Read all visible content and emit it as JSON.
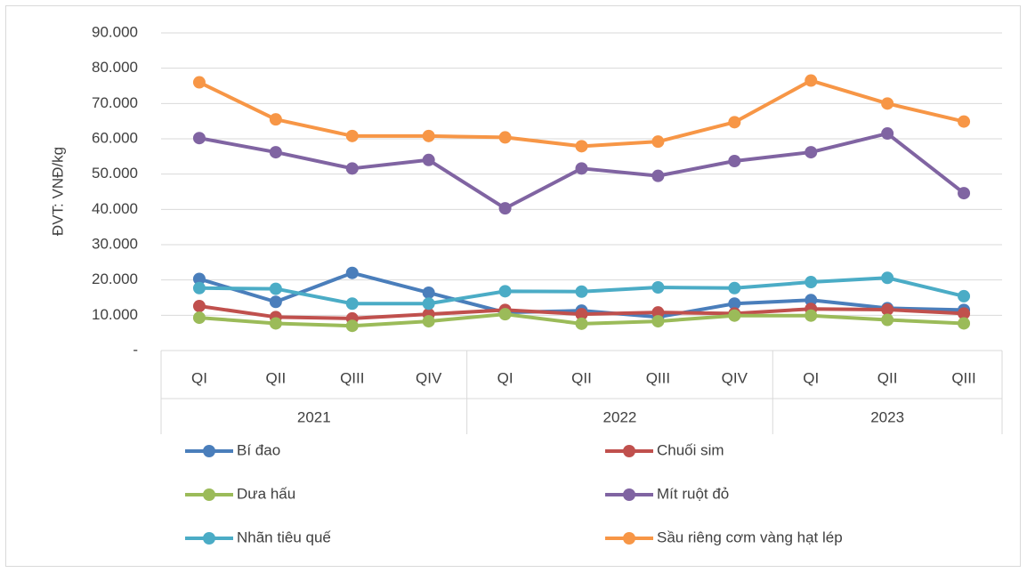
{
  "chart_data": {
    "type": "line",
    "y_label": "ĐVT: VNĐ/kg",
    "groups": [
      {
        "name": "2021",
        "categories": [
          "QI",
          "QII",
          "QIII",
          "QIV"
        ]
      },
      {
        "name": "2022",
        "categories": [
          "QI",
          "QII",
          "QIII",
          "QIV"
        ]
      },
      {
        "name": "2023",
        "categories": [
          "QI",
          "QII",
          "QIII"
        ]
      }
    ],
    "ylim": [
      0,
      90000
    ],
    "yticks": [
      {
        "value": 0,
        "label": "-"
      },
      {
        "value": 10000,
        "label": "10.000"
      },
      {
        "value": 20000,
        "label": "20.000"
      },
      {
        "value": 30000,
        "label": "30.000"
      },
      {
        "value": 40000,
        "label": "40.000"
      },
      {
        "value": 50000,
        "label": "50.000"
      },
      {
        "value": 60000,
        "label": "60.000"
      },
      {
        "value": 70000,
        "label": "70.000"
      },
      {
        "value": 80000,
        "label": "80.000"
      },
      {
        "value": 90000,
        "label": "90.000"
      }
    ],
    "grid": true,
    "legend": "bottom",
    "series": [
      {
        "name": "Bí đao",
        "color": "#4a7ebb",
        "values": [
          20300,
          13800,
          22000,
          16400,
          10800,
          11300,
          9500,
          13300,
          14300,
          12000,
          11500
        ]
      },
      {
        "name": "Chuối sim",
        "color": "#c0504d",
        "values": [
          12600,
          9500,
          9100,
          10300,
          11500,
          10300,
          10800,
          10500,
          11800,
          11600,
          10500
        ]
      },
      {
        "name": "Dưa hấu",
        "color": "#9bbb59",
        "values": [
          9300,
          7700,
          7000,
          8300,
          10300,
          7600,
          8300,
          9900,
          9900,
          8700,
          7700
        ]
      },
      {
        "name": "Mít ruột đỏ",
        "color": "#8064a2",
        "values": [
          60200,
          56200,
          51600,
          54000,
          40300,
          51600,
          49500,
          53700,
          56200,
          61500,
          44600
        ]
      },
      {
        "name": "Nhãn tiêu quế",
        "color": "#4bacc6",
        "values": [
          17700,
          17500,
          13300,
          13300,
          16800,
          16700,
          17900,
          17700,
          19400,
          20600,
          15400
        ]
      },
      {
        "name": "Sầu riêng cơm vàng hạt lép",
        "color": "#f79646",
        "values": [
          76000,
          65500,
          60800,
          60800,
          60400,
          57900,
          59200,
          64700,
          76500,
          70000,
          64900
        ]
      }
    ]
  }
}
